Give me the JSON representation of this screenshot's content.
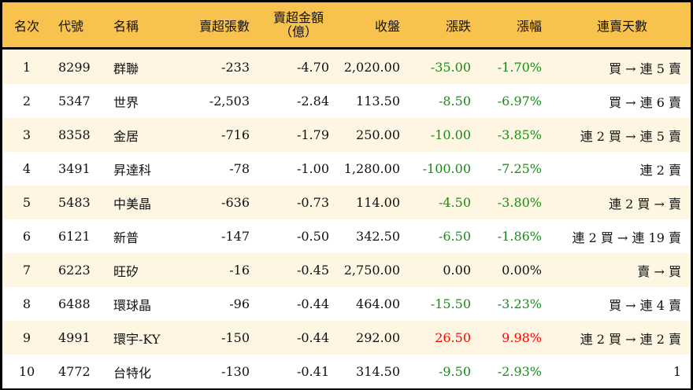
{
  "headers": [
    "名次",
    "代號",
    "名稱",
    "賣超張數",
    "賣超金額",
    "（億）",
    "收盤",
    "漲跌",
    "漲幅",
    "連賣天數"
  ],
  "colors": {
    "header_bg": "#F8C24F",
    "stripe": "#FEF6E3",
    "down": "#1a8a1a",
    "up": "#ff0000"
  },
  "rows": [
    {
      "rank": "1",
      "code": "8299",
      "name": "群聯",
      "lots": "-233",
      "amount": "-4.70",
      "close": "2,020.00",
      "change": "-35.00",
      "pct": "-1.70%",
      "streak": "買 → 連 5 賣",
      "dir": "down"
    },
    {
      "rank": "2",
      "code": "5347",
      "name": "世界",
      "lots": "-2,503",
      "amount": "-2.84",
      "close": "113.50",
      "change": "-8.50",
      "pct": "-6.97%",
      "streak": "買 → 連 6 賣",
      "dir": "down"
    },
    {
      "rank": "3",
      "code": "8358",
      "name": "金居",
      "lots": "-716",
      "amount": "-1.79",
      "close": "250.00",
      "change": "-10.00",
      "pct": "-3.85%",
      "streak": "連 2 買 → 連 5 賣",
      "dir": "down"
    },
    {
      "rank": "4",
      "code": "3491",
      "name": "昇達科",
      "lots": "-78",
      "amount": "-1.00",
      "close": "1,280.00",
      "change": "-100.00",
      "pct": "-7.25%",
      "streak": "連 2 賣",
      "dir": "down"
    },
    {
      "rank": "5",
      "code": "5483",
      "name": "中美晶",
      "lots": "-636",
      "amount": "-0.73",
      "close": "114.00",
      "change": "-4.50",
      "pct": "-3.80%",
      "streak": "連 2 買 → 賣",
      "dir": "down"
    },
    {
      "rank": "6",
      "code": "6121",
      "name": "新普",
      "lots": "-147",
      "amount": "-0.50",
      "close": "342.50",
      "change": "-6.50",
      "pct": "-1.86%",
      "streak": "連 2 買 → 連 19 賣",
      "dir": "down"
    },
    {
      "rank": "7",
      "code": "6223",
      "name": "旺矽",
      "lots": "-16",
      "amount": "-0.45",
      "close": "2,750.00",
      "change": "0.00",
      "pct": "0.00%",
      "streak": "賣 → 買",
      "dir": "flat"
    },
    {
      "rank": "8",
      "code": "6488",
      "name": "環球晶",
      "lots": "-96",
      "amount": "-0.44",
      "close": "464.00",
      "change": "-15.50",
      "pct": "-3.23%",
      "streak": "買 → 連 4 賣",
      "dir": "down"
    },
    {
      "rank": "9",
      "code": "4991",
      "name": "環宇-KY",
      "lots": "-150",
      "amount": "-0.44",
      "close": "292.00",
      "change": "26.50",
      "pct": "9.98%",
      "streak": "連 2 買 → 連 2 賣",
      "dir": "up"
    },
    {
      "rank": "10",
      "code": "4772",
      "name": "台特化",
      "lots": "-130",
      "amount": "-0.41",
      "close": "314.50",
      "change": "-9.50",
      "pct": "-2.93%",
      "streak": "1",
      "dir": "down"
    }
  ]
}
